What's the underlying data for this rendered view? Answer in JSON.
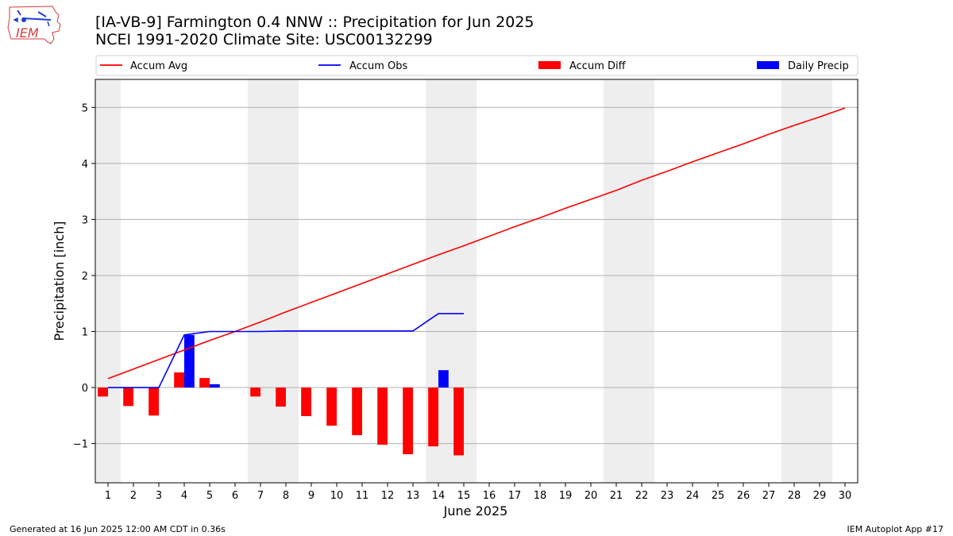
{
  "header": {
    "title_line1": "[IA-VB-9] Farmington 0.4 NNW :: Precipitation for Jun 2025",
    "title_line2": "NCEI 1991-2020 Climate Site: USC00132299"
  },
  "logo": {
    "text": "IEM",
    "color": "#d43b3b"
  },
  "footer": {
    "generated": "Generated at 16 Jun 2025 12:00 AM CDT in 0.36s",
    "app": "IEM Autoplot App #17"
  },
  "chart_data": {
    "type": "bar",
    "xlabel": "June 2025",
    "ylabel": "Precipitation [inch]",
    "xlim": [
      0.5,
      30.5
    ],
    "ylim": [
      -1.7,
      5.5
    ],
    "yticks": [
      -1,
      0,
      1,
      2,
      3,
      4,
      5
    ],
    "ytick_labels": [
      "−1",
      "0",
      "1",
      "2",
      "3",
      "4",
      "5"
    ],
    "days": [
      1,
      2,
      3,
      4,
      5,
      6,
      7,
      8,
      9,
      10,
      11,
      12,
      13,
      14,
      15,
      16,
      17,
      18,
      19,
      20,
      21,
      22,
      23,
      24,
      25,
      26,
      27,
      28,
      29,
      30
    ],
    "weekend_day_ranges": [
      [
        0.5,
        1.5
      ],
      [
        6.5,
        8.5
      ],
      [
        13.5,
        15.5
      ],
      [
        20.5,
        22.5
      ],
      [
        27.5,
        29.5
      ]
    ],
    "grid": "horizontal",
    "legend_placement": "top, above plot",
    "legend": [
      {
        "label": "Accum Avg",
        "kind": "line",
        "color": "#ff0000"
      },
      {
        "label": "Accum Obs",
        "kind": "line",
        "color": "#0000ff"
      },
      {
        "label": "Accum Diff",
        "kind": "bar",
        "color": "#ff0000"
      },
      {
        "label": "Daily Precip",
        "kind": "bar",
        "color": "#0000ff"
      }
    ],
    "series": [
      {
        "name": "Accum Avg",
        "kind": "line",
        "color": "#ff0000",
        "x": [
          1,
          2,
          3,
          4,
          5,
          6,
          7,
          8,
          9,
          10,
          11,
          12,
          13,
          14,
          15,
          16,
          17,
          18,
          19,
          20,
          21,
          22,
          23,
          24,
          25,
          26,
          27,
          28,
          29,
          30
        ],
        "values": [
          0.16,
          0.33,
          0.5,
          0.67,
          0.84,
          1.0,
          1.17,
          1.35,
          1.52,
          1.69,
          1.86,
          2.03,
          2.2,
          2.37,
          2.53,
          2.7,
          2.87,
          3.03,
          3.2,
          3.36,
          3.52,
          3.7,
          3.86,
          4.03,
          4.19,
          4.35,
          4.52,
          4.68,
          4.83,
          4.99
        ]
      },
      {
        "name": "Accum Obs",
        "kind": "line",
        "color": "#0000ff",
        "x": [
          1,
          2,
          3,
          4,
          5,
          6,
          7,
          8,
          9,
          10,
          11,
          12,
          13,
          14,
          15
        ],
        "values": [
          0.0,
          0.0,
          0.0,
          0.94,
          1.0,
          1.0,
          1.0,
          1.01,
          1.01,
          1.01,
          1.01,
          1.01,
          1.01,
          1.32,
          1.32
        ]
      },
      {
        "name": "Accum Diff",
        "kind": "bar",
        "color": "#ff0000",
        "offset": -0.2,
        "x": [
          1,
          2,
          3,
          4,
          5,
          7,
          8,
          9,
          10,
          11,
          12,
          13,
          14,
          15
        ],
        "values": [
          -0.16,
          -0.33,
          -0.5,
          0.27,
          0.17,
          -0.16,
          -0.34,
          -0.51,
          -0.68,
          -0.85,
          -1.02,
          -1.19,
          -1.05,
          -1.21
        ]
      },
      {
        "name": "Daily Precip",
        "kind": "bar",
        "color": "#0000ff",
        "offset": 0.2,
        "x": [
          4,
          5,
          14
        ],
        "values": [
          0.94,
          0.06,
          0.31
        ]
      }
    ]
  }
}
